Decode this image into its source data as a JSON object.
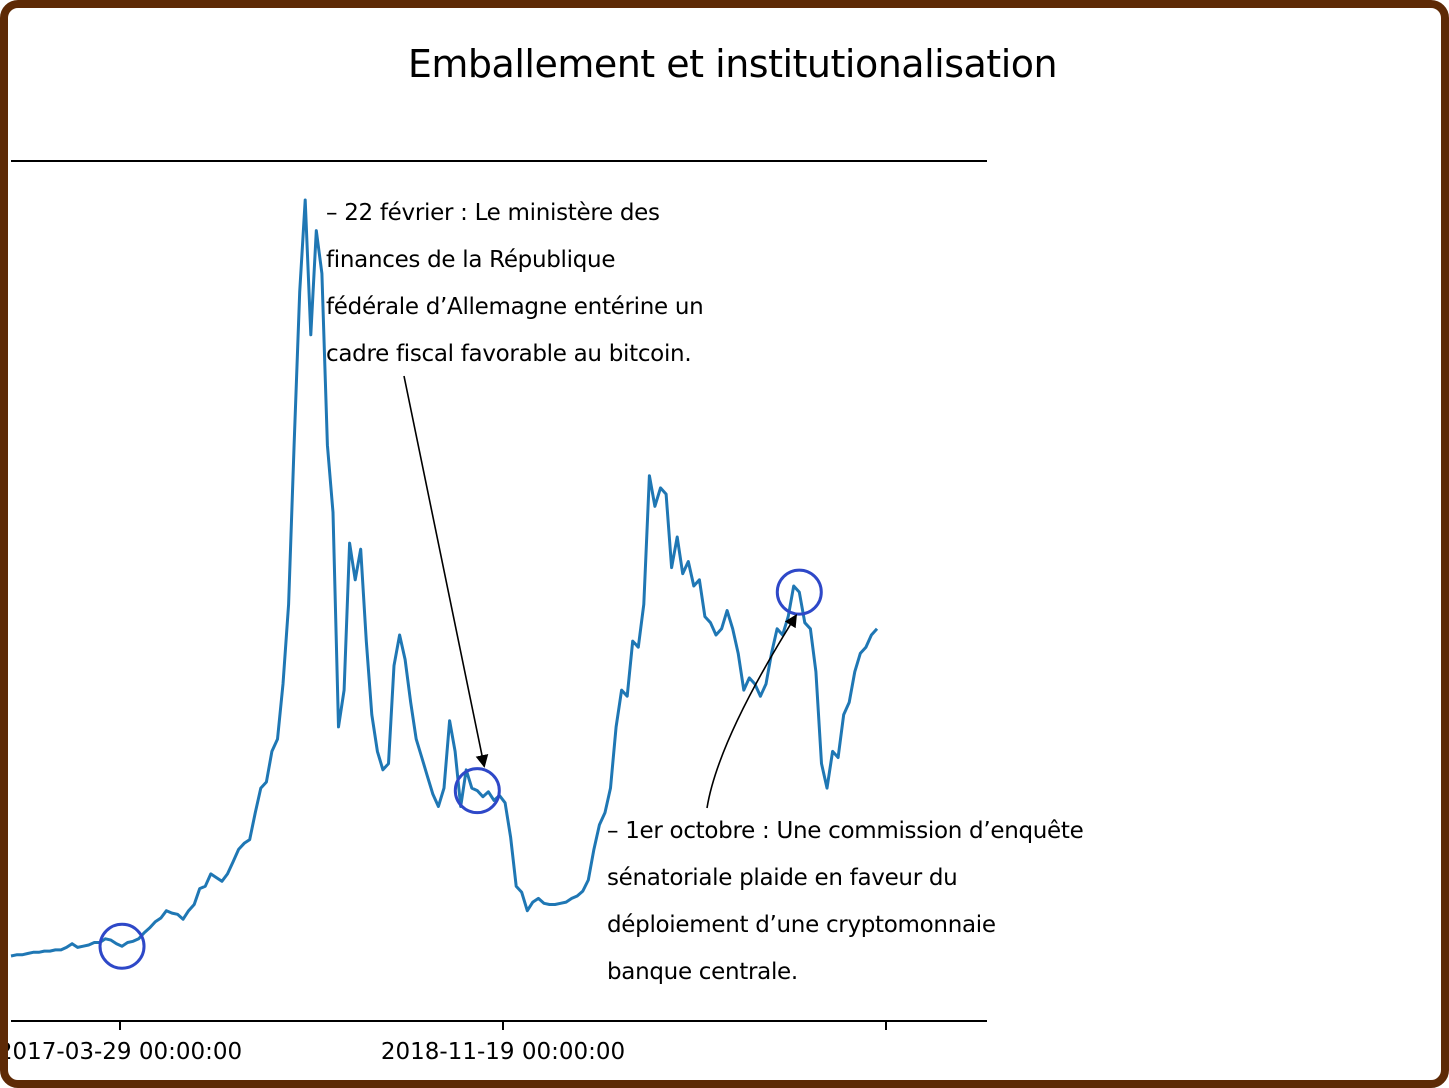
{
  "chart_data": {
    "type": "line",
    "title": "Emballement et institutionalisation",
    "xlabel": "",
    "ylabel": "",
    "x_ticks": [
      "2017-03-29 00:00:00",
      "2018-11-19 00:00:00",
      ""
    ],
    "grid": false,
    "series": [
      {
        "color": "#1f77b4",
        "values": [
          0.03,
          0.04,
          0.04,
          0.05,
          0.06,
          0.06,
          0.07,
          0.07,
          0.08,
          0.08,
          0.1,
          0.13,
          0.1,
          0.11,
          0.12,
          0.14,
          0.14,
          0.17,
          0.16,
          0.13,
          0.11,
          0.14,
          0.15,
          0.17,
          0.22,
          0.26,
          0.31,
          0.34,
          0.4,
          0.38,
          0.37,
          0.33,
          0.4,
          0.45,
          0.58,
          0.6,
          0.7,
          0.67,
          0.64,
          0.7,
          0.8,
          0.9,
          0.95,
          0.98,
          1.2,
          1.4,
          1.45,
          1.7,
          1.8,
          2.25,
          2.9,
          4.2,
          5.45,
          6.2,
          5.1,
          5.95,
          5.6,
          4.2,
          3.65,
          1.9,
          2.2,
          3.4,
          3.1,
          3.35,
          2.6,
          2.0,
          1.7,
          1.55,
          1.6,
          2.4,
          2.65,
          2.45,
          2.1,
          1.8,
          1.65,
          1.5,
          1.35,
          1.25,
          1.4,
          1.95,
          1.7,
          1.25,
          1.55,
          1.4,
          1.38,
          1.33,
          1.37,
          1.3,
          1.34,
          1.28,
          1.0,
          0.6,
          0.55,
          0.4,
          0.47,
          0.5,
          0.46,
          0.45,
          0.45,
          0.46,
          0.47,
          0.5,
          0.52,
          0.56,
          0.65,
          0.9,
          1.1,
          1.2,
          1.4,
          1.9,
          2.2,
          2.15,
          2.6,
          2.55,
          2.9,
          3.95,
          3.7,
          3.85,
          3.8,
          3.2,
          3.45,
          3.15,
          3.25,
          3.05,
          3.1,
          2.8,
          2.75,
          2.65,
          2.7,
          2.85,
          2.7,
          2.5,
          2.2,
          2.3,
          2.25,
          2.15,
          2.25,
          2.5,
          2.7,
          2.65,
          2.8,
          3.05,
          3.0,
          2.75,
          2.7,
          2.35,
          1.6,
          1.4,
          1.7,
          1.65,
          2.0,
          2.1,
          2.35,
          2.5,
          2.55,
          2.65,
          2.7
        ]
      }
    ],
    "annotations": [
      {
        "lines": [
          "– 22 février : Le ministère des",
          "finances de la République",
          "fédérale d’Allemagne entérine un",
          "cadre fiscal favorable au bitcoin."
        ]
      },
      {
        "lines": [
          "– 1er octobre : Une commission d’enquête",
          "sénatoriale plaide en faveur du",
          "déploiement d’une cryptomonnaie",
          "banque centrale."
        ]
      }
    ],
    "highlight_points": [
      20,
      84,
      142
    ],
    "highlight_color": "#2e48c8"
  }
}
